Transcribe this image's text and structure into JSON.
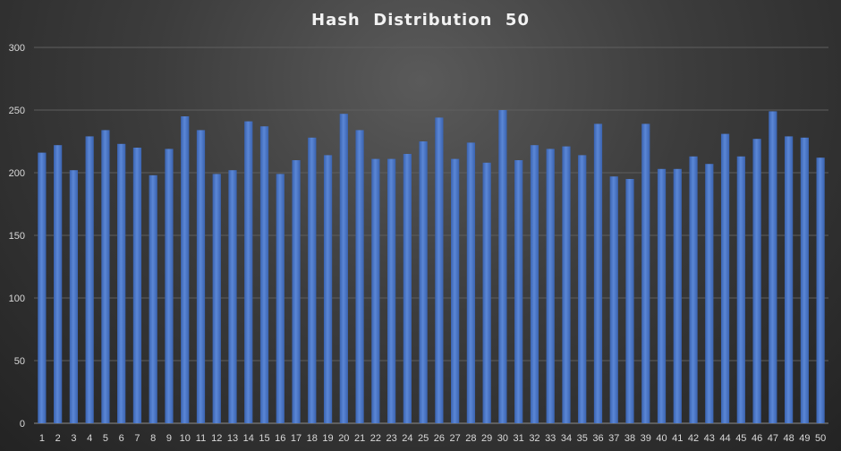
{
  "chart_data": {
    "type": "bar",
    "title": "Hash  Distribution  50",
    "xlabel": "",
    "ylabel": "",
    "ylim": [
      0,
      300
    ],
    "yticks": [
      0,
      50,
      100,
      150,
      200,
      250,
      300
    ],
    "grid": true,
    "legend": "none",
    "categories": [
      "1",
      "2",
      "3",
      "4",
      "5",
      "6",
      "7",
      "8",
      "9",
      "10",
      "11",
      "12",
      "13",
      "14",
      "15",
      "16",
      "17",
      "18",
      "19",
      "20",
      "21",
      "22",
      "23",
      "24",
      "25",
      "26",
      "27",
      "28",
      "29",
      "30",
      "31",
      "32",
      "33",
      "34",
      "35",
      "36",
      "37",
      "38",
      "39",
      "40",
      "41",
      "42",
      "43",
      "44",
      "45",
      "46",
      "47",
      "48",
      "49",
      "50"
    ],
    "values": [
      216,
      222,
      202,
      229,
      234,
      223,
      220,
      198,
      219,
      245,
      234,
      199,
      202,
      241,
      237,
      199,
      210,
      228,
      214,
      247,
      234,
      211,
      211,
      215,
      225,
      244,
      211,
      224,
      208,
      250,
      210,
      222,
      219,
      221,
      214,
      239,
      197,
      195,
      239,
      203,
      203,
      213,
      207,
      231,
      213,
      227,
      249,
      229,
      228,
      212
    ],
    "colors": {
      "bar": "#4472c4",
      "bar_light": "#5b87d6",
      "grid": "#5e5e5e",
      "axis": "#8c8c8c"
    }
  }
}
